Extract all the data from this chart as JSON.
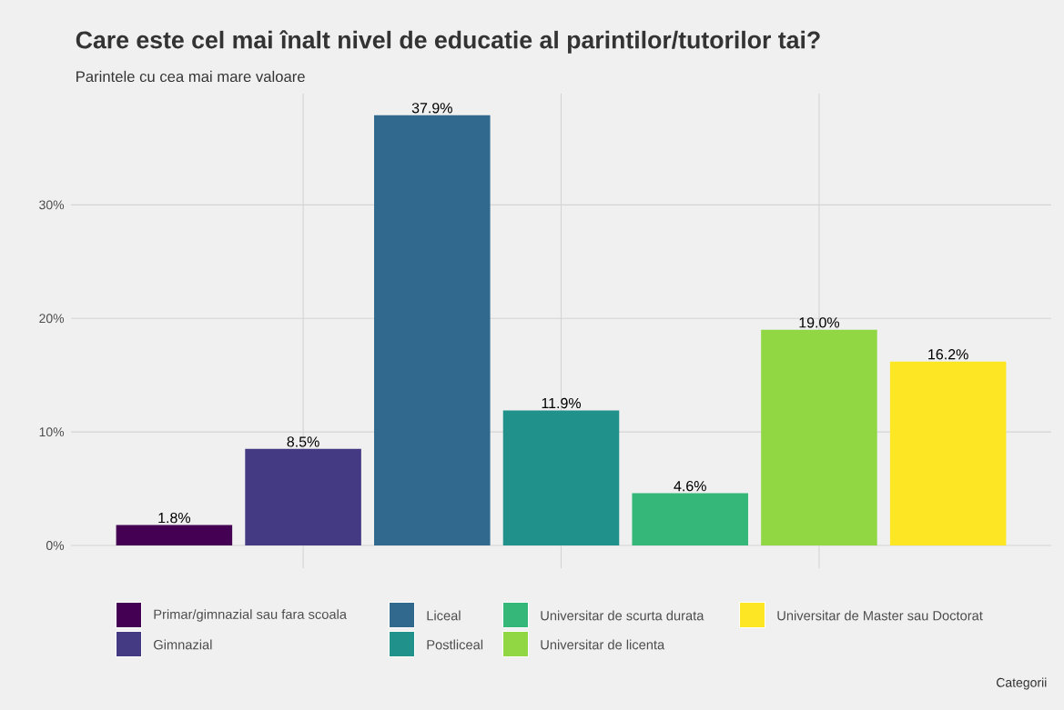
{
  "chart_data": {
    "type": "bar",
    "title": "Care este cel mai înalt nivel de educatie al parintilor/tutorilor tai?",
    "subtitle": "Parintele cu cea mai mare valoare",
    "annotations": [
      "Categorii"
    ],
    "categories": [
      null,
      null,
      null,
      null,
      null,
      null,
      null
    ],
    "ylim": [
      -2,
      39.8
    ],
    "yticks": [
      {
        "value": 0,
        "label": "0%"
      },
      {
        "value": 10,
        "label": "10%"
      },
      {
        "value": 20,
        "label": "20%"
      },
      {
        "value": 30,
        "label": "30%"
      }
    ],
    "grid": true,
    "legend": "bottom",
    "series": [
      {
        "name": "Primar/gimnazial sau fara scoala",
        "color": "#440154",
        "values": [
          1.8,
          null,
          null,
          null,
          null,
          null,
          null
        ],
        "value_labels": [
          "1.8%",
          null,
          null,
          null,
          null,
          null,
          null
        ]
      },
      {
        "name": "Gimnazial",
        "color": "#443983",
        "values": [
          null,
          8.5,
          null,
          null,
          null,
          null,
          null
        ],
        "value_labels": [
          null,
          "8.5%",
          null,
          null,
          null,
          null,
          null
        ]
      },
      {
        "name": "Liceal",
        "color": "#31688e",
        "values": [
          null,
          null,
          37.9,
          null,
          null,
          null,
          null
        ],
        "value_labels": [
          null,
          null,
          "37.9%",
          null,
          null,
          null,
          null
        ]
      },
      {
        "name": "Postliceal",
        "color": "#21918c",
        "values": [
          null,
          null,
          null,
          11.9,
          null,
          null,
          null
        ],
        "value_labels": [
          null,
          null,
          null,
          "11.9%",
          null,
          null,
          null
        ]
      },
      {
        "name": "Universitar de scurta durata",
        "color": "#35b779",
        "values": [
          null,
          null,
          null,
          null,
          4.6,
          null,
          null
        ],
        "value_labels": [
          null,
          null,
          null,
          null,
          "4.6%",
          null,
          null
        ]
      },
      {
        "name": "Universitar de licenta",
        "color": "#90d743",
        "values": [
          null,
          null,
          null,
          null,
          null,
          19.0,
          null
        ],
        "value_labels": [
          null,
          null,
          null,
          null,
          null,
          "19.0%",
          null
        ]
      },
      {
        "name": "Universitar de Master sau Doctorat",
        "color": "#fde725",
        "values": [
          null,
          null,
          null,
          null,
          null,
          null,
          16.2
        ],
        "value_labels": [
          null,
          null,
          null,
          null,
          null,
          null,
          "16.2%"
        ]
      }
    ]
  }
}
